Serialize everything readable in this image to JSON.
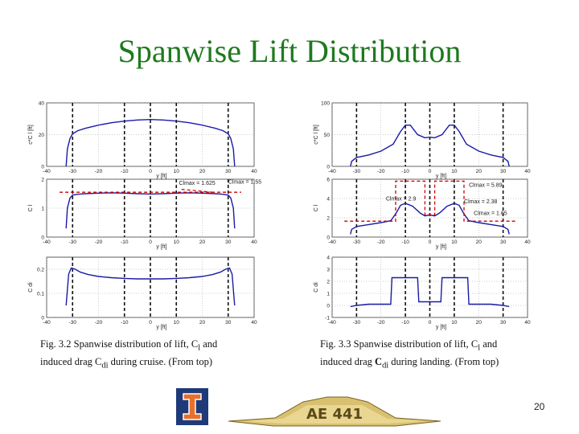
{
  "slide": {
    "title": "Spanwise Lift Distribution",
    "page_number": "20"
  },
  "captions": {
    "left": {
      "line1": "Fig. 3.2 Spanwise distribution of lift, C",
      "line1_sub": "l",
      "line1_end": " and",
      "line2": "induced drag C",
      "line2_sub": "di",
      "line2_end": " during cruise. (From top)"
    },
    "right": {
      "line1": "Fig. 3.3 Spanwise distribution of lift, C",
      "line1_sub": "l",
      "line1_end": " and",
      "line2": "induced drag ",
      "line2_bold": "C",
      "line2_sub": "di",
      "line2_end": " during landing. (From top)"
    }
  },
  "colors": {
    "title": "#1e7a1e",
    "curve": "#1a1aa8",
    "dashed": "#cc0000",
    "banner": "#d8c070",
    "logo_bg": "#1f3a78",
    "logo_fg": "#e8702a"
  },
  "logos": {
    "university": "illinois-block-i",
    "banner_text": "AE 441"
  },
  "chart_data": [
    {
      "id": "cruise-ccl",
      "type": "line",
      "ylabel": "c*C l [ft]",
      "xlabel": "y [ft]",
      "xlim": [
        -40,
        40
      ],
      "ylim": [
        0,
        40
      ],
      "xticks": [
        -40,
        -30,
        -20,
        -10,
        0,
        10,
        20,
        30,
        40
      ],
      "yticks": [
        0,
        20,
        40
      ],
      "vlines": [
        -30,
        -10,
        0,
        10,
        30
      ],
      "series": [
        {
          "x": [
            -32.5,
            -32,
            -31,
            -30,
            -28,
            -25,
            -20,
            -15,
            -10,
            -5,
            0,
            5,
            10,
            15,
            20,
            25,
            28,
            30,
            31,
            32,
            32.5
          ],
          "y": [
            0,
            11,
            17.5,
            20.5,
            22.5,
            24,
            26,
            27.5,
            28.5,
            29.2,
            29.5,
            29.2,
            28.5,
            27.5,
            26,
            24,
            22.5,
            20.5,
            17.5,
            11,
            0
          ]
        }
      ]
    },
    {
      "id": "cruise-cl",
      "type": "line",
      "ylabel": "C l",
      "xlabel": "y [ft]",
      "xlim": [
        -40,
        40
      ],
      "ylim": [
        0,
        2
      ],
      "xticks": [
        -40,
        -30,
        -20,
        -10,
        0,
        10,
        20,
        30,
        40
      ],
      "yticks": [
        0,
        1,
        2
      ],
      "vlines": [
        -30,
        -10,
        0,
        10,
        30
      ],
      "annotations": [
        {
          "text": "Clmax = 1.625",
          "x": 11,
          "y": 1.8
        },
        {
          "text": "Clmax = 1.55",
          "x": 30,
          "y": 1.85
        }
      ],
      "series": [
        {
          "x": [
            -32.5,
            -32,
            -31,
            -30,
            -28,
            -25,
            -20,
            -15,
            -10,
            -5,
            0,
            5,
            10,
            15,
            20,
            25,
            28,
            30,
            31,
            32,
            32.5
          ],
          "y": [
            0.3,
            1.0,
            1.35,
            1.45,
            1.48,
            1.5,
            1.52,
            1.53,
            1.52,
            1.5,
            1.49,
            1.5,
            1.52,
            1.53,
            1.52,
            1.5,
            1.48,
            1.45,
            1.35,
            1.0,
            0.3
          ]
        },
        {
          "x": [
            -35,
            35
          ],
          "y": [
            1.55,
            1.55
          ],
          "dashed": true
        },
        {
          "x": [
            12,
            24
          ],
          "y": [
            1.65,
            1.55
          ],
          "dashed": true
        }
      ]
    },
    {
      "id": "cruise-cdi",
      "type": "line",
      "ylabel": "C di",
      "xlabel": "y [ft]",
      "xlim": [
        -40,
        40
      ],
      "ylim": [
        0,
        0.25
      ],
      "xticks": [
        -40,
        -30,
        -20,
        -10,
        0,
        10,
        20,
        30,
        40
      ],
      "yticks": [
        0,
        0.1,
        0.2
      ],
      "ytick_labels": [
        "0",
        "0.1",
        "0.2"
      ],
      "vlines": [
        -30,
        -10,
        0,
        10,
        30
      ],
      "series": [
        {
          "x": [
            -32.5,
            -31.5,
            -30.5,
            -29,
            -27,
            -24,
            -20,
            -15,
            -10,
            -5,
            0,
            5,
            10,
            15,
            20,
            24,
            27,
            29,
            30.5,
            31.5,
            32.5
          ],
          "y": [
            0.05,
            0.18,
            0.205,
            0.2,
            0.188,
            0.178,
            0.17,
            0.165,
            0.162,
            0.16,
            0.16,
            0.16,
            0.162,
            0.165,
            0.17,
            0.178,
            0.188,
            0.2,
            0.205,
            0.18,
            0.05
          ]
        }
      ]
    },
    {
      "id": "landing-ccl",
      "type": "line",
      "ylabel": "c*C l [ft]",
      "xlabel": "y [ft]",
      "xlim": [
        -40,
        40
      ],
      "ylim": [
        0,
        100
      ],
      "xticks": [
        -40,
        -30,
        -20,
        -10,
        0,
        10,
        20,
        30,
        40
      ],
      "yticks": [
        0,
        50,
        100
      ],
      "vlines": [
        -30,
        -10,
        0,
        10,
        30
      ],
      "series": [
        {
          "x": [
            -32.5,
            -32,
            -30,
            -25,
            -20,
            -15,
            -12,
            -10,
            -8,
            -5,
            -2,
            0,
            2,
            5,
            8,
            10,
            12,
            15,
            20,
            25,
            30,
            32,
            32.5
          ],
          "y": [
            0,
            8,
            14,
            18,
            24,
            35,
            55,
            65,
            65,
            50,
            45,
            46,
            45,
            50,
            65,
            65,
            55,
            35,
            24,
            18,
            14,
            8,
            0
          ]
        }
      ]
    },
    {
      "id": "landing-cl",
      "type": "line",
      "ylabel": "C l",
      "xlabel": "y [ft]",
      "xlim": [
        -40,
        40
      ],
      "ylim": [
        0,
        6
      ],
      "xticks": [
        -40,
        -30,
        -20,
        -10,
        0,
        10,
        20,
        30,
        40
      ],
      "yticks": [
        0,
        2,
        4,
        6
      ],
      "vlines": [
        -30,
        -10,
        0,
        10,
        30
      ],
      "annotations": [
        {
          "text": "Clmax = 5.89",
          "x": 16,
          "y": 5.2
        },
        {
          "text": "Clmax = 2.38",
          "x": 14,
          "y": 3.5
        },
        {
          "text": "Clmax = 1.65",
          "x": 18,
          "y": 2.3
        },
        {
          "text": "Clmax = 2.9",
          "x": -18,
          "y": 3.8
        }
      ],
      "series": [
        {
          "x": [
            -32.5,
            -32,
            -30,
            -25,
            -20,
            -16,
            -14,
            -12,
            -10,
            -7,
            -4,
            -2,
            0,
            2,
            4,
            7,
            10,
            12,
            14,
            16,
            20,
            25,
            30,
            32,
            32.5
          ],
          "y": [
            0.3,
            0.8,
            1.1,
            1.3,
            1.5,
            1.7,
            2.4,
            3.3,
            3.5,
            3.2,
            2.5,
            2.2,
            2.3,
            2.2,
            2.5,
            3.2,
            3.5,
            3.3,
            2.4,
            1.7,
            1.5,
            1.3,
            1.1,
            0.8,
            0.3
          ]
        },
        {
          "x": [
            -35,
            -14,
            -14,
            -2,
            -2,
            2,
            2,
            14,
            14,
            35
          ],
          "y": [
            1.65,
            1.65,
            5.8,
            5.8,
            2.3,
            2.3,
            5.8,
            5.8,
            1.65,
            1.65
          ],
          "dashed": true
        }
      ]
    },
    {
      "id": "landing-cdi",
      "type": "line",
      "ylabel": "C di",
      "xlabel": "y [ft]",
      "xlim": [
        -40,
        40
      ],
      "ylim": [
        -1,
        4
      ],
      "xticks": [
        -40,
        -30,
        -20,
        -10,
        0,
        10,
        20,
        30,
        40
      ],
      "yticks": [
        -1,
        0,
        1,
        2,
        3,
        4
      ],
      "vlines": [
        -30,
        -10,
        0,
        10,
        30
      ],
      "series": [
        {
          "x": [
            -32.5,
            -30,
            -25,
            -20,
            -16,
            -15.5,
            -14,
            -12,
            -10,
            -5,
            -4.5,
            -2,
            0,
            2,
            4.5,
            5,
            10,
            12,
            14,
            15.5,
            16,
            20,
            25,
            30,
            32.5
          ],
          "y": [
            -0.1,
            0.0,
            0.1,
            0.1,
            0.1,
            2.3,
            2.3,
            2.3,
            2.3,
            2.3,
            0.3,
            0.3,
            0.3,
            0.3,
            0.3,
            2.3,
            2.3,
            2.3,
            2.3,
            2.3,
            0.1,
            0.1,
            0.1,
            0.0,
            -0.1
          ]
        }
      ]
    }
  ]
}
